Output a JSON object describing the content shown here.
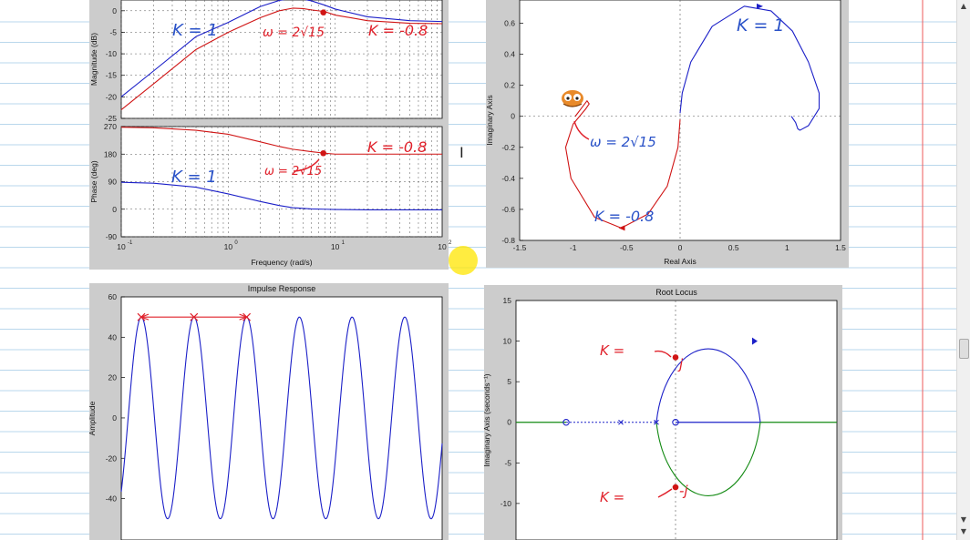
{
  "notebook": {
    "line_color": "#b9d7ec",
    "margin_color": "#ee5a5a"
  },
  "colors": {
    "blue": "#1c20c8",
    "red": "#d01515",
    "green": "#138a13",
    "ink_blue": "#2a52c8",
    "ink_red": "#e0202a"
  },
  "chart_data": [
    {
      "type": "line",
      "name": "bode-magnitude",
      "ylabel": "Magnitude (dB)",
      "xscale": "log",
      "xlim": [
        0.1,
        100
      ],
      "ylim": [
        -25,
        0
      ],
      "yticks": [
        "0",
        "-5",
        "-10",
        "-15",
        "-20",
        "-25"
      ],
      "grid": true,
      "series": [
        {
          "color": "blue",
          "x": [
            0.1,
            0.2,
            0.5,
            1,
            2,
            3,
            4,
            5,
            6,
            8,
            10,
            20,
            50,
            100
          ],
          "y": [
            -20,
            -14,
            -6,
            -2.7,
            1,
            2.4,
            2.9,
            2.7,
            2.3,
            1.3,
            0.4,
            -1.4,
            -2.3,
            -2.5
          ]
        },
        {
          "color": "red",
          "x": [
            0.1,
            0.2,
            0.5,
            1,
            2,
            3,
            4,
            5,
            6,
            8,
            10,
            20,
            50,
            100
          ],
          "y": [
            -23,
            -17,
            -9,
            -5,
            -1.6,
            0,
            0.6,
            0.5,
            0.2,
            -0.2,
            -1,
            -2.3,
            -2.9,
            -3
          ]
        }
      ],
      "annotations": [
        {
          "text": "K = 1",
          "color": "ink_blue"
        },
        {
          "text": "ω = 2√15",
          "color": "ink_red"
        },
        {
          "text": "K = -0.8",
          "color": "ink_red"
        }
      ]
    },
    {
      "type": "line",
      "name": "bode-phase",
      "ylabel": "Phase (deg)",
      "xlabel": "Frequency  (rad/s)",
      "xscale": "log",
      "xlim": [
        0.1,
        100
      ],
      "ylim": [
        -90,
        270
      ],
      "yticks": [
        "270",
        "180",
        "90",
        "0",
        "-90"
      ],
      "xticks": [
        "10^-1",
        "10^0",
        "10^1",
        "10^2"
      ],
      "grid": true,
      "series": [
        {
          "color": "blue",
          "x": [
            0.1,
            0.2,
            0.5,
            1,
            2,
            3,
            4,
            6,
            8,
            10,
            20,
            50,
            100
          ],
          "y": [
            88,
            85,
            72,
            50,
            25,
            12,
            5,
            1,
            0,
            -1,
            -2,
            -2,
            -2
          ]
        },
        {
          "color": "red",
          "x": [
            0.1,
            0.2,
            0.5,
            1,
            2,
            3,
            4,
            6,
            8,
            10,
            20,
            50,
            100
          ],
          "y": [
            268,
            266,
            258,
            245,
            220,
            205,
            196,
            188,
            183,
            180,
            180,
            180,
            180
          ]
        }
      ],
      "annotations": [
        {
          "text": "K = -0.8",
          "color": "ink_red"
        },
        {
          "text": "K = 1",
          "color": "ink_blue"
        },
        {
          "text": "ω = 2√15",
          "color": "ink_red"
        }
      ]
    },
    {
      "type": "line",
      "name": "nyquist",
      "xlabel": "Real Axis",
      "ylabel": "Imaginary Axis",
      "xlim": [
        -1.5,
        1.5
      ],
      "ylim": [
        -0.8,
        0.75
      ],
      "xticks": [
        "-1.5",
        "-1",
        "-0.5",
        "0",
        "0.5",
        "1",
        "1.5"
      ],
      "yticks": [
        "0.6",
        "0.4",
        "0.2",
        "0",
        "-0.2",
        "-0.4",
        "-0.6",
        "-0.8"
      ],
      "series": [
        {
          "color": "blue",
          "x": [
            0,
            0.02,
            0.1,
            0.3,
            0.6,
            0.85,
            1.05,
            1.2,
            1.3,
            1.3,
            1.2,
            1.12,
            1.1,
            1.08,
            1.04
          ],
          "y": [
            0.02,
            0.15,
            0.35,
            0.58,
            0.71,
            0.68,
            0.55,
            0.35,
            0.15,
            0.05,
            -0.06,
            -0.09,
            -0.08,
            -0.04,
            0
          ]
        },
        {
          "color": "red",
          "x": [
            0,
            -0.02,
            -0.12,
            -0.3,
            -0.55,
            -0.8,
            -1.02,
            -1.07,
            -1.0,
            -0.88,
            -0.85,
            -0.87,
            -0.98
          ],
          "y": [
            -0.02,
            -0.2,
            -0.45,
            -0.63,
            -0.72,
            -0.65,
            -0.4,
            -0.2,
            -0.05,
            0.05,
            0.08,
            0.1,
            0.0
          ]
        }
      ],
      "annotations": [
        {
          "text": "K = 1",
          "color": "ink_blue"
        },
        {
          "text": "ω = 2√15",
          "color": "ink_blue"
        },
        {
          "text": "K = -0.8",
          "color": "ink_blue"
        }
      ]
    },
    {
      "type": "line",
      "name": "impulse-response",
      "title": "Impulse Response",
      "ylabel": "Amplitude",
      "ylim": [
        -60,
        60
      ],
      "yticks": [
        "60",
        "40",
        "20",
        "0",
        "-20",
        "-40"
      ],
      "series": [
        {
          "color": "blue",
          "amplitude": 50,
          "peaks": 6
        }
      ]
    },
    {
      "type": "scatter",
      "name": "root-locus",
      "title": "Root Locus",
      "ylabel": "Imaginary Axis (seconds⁻¹)",
      "ylim": [
        -12,
        15
      ],
      "yticks": [
        "15",
        "10",
        "5",
        "0",
        "-5",
        "-10"
      ],
      "poles_zeros": [
        {
          "kind": "zero",
          "x": -4,
          "y": 0
        },
        {
          "kind": "zero",
          "x": 0,
          "y": 0
        },
        {
          "kind": "pole",
          "x": -2,
          "y": 0
        },
        {
          "kind": "pole",
          "x": -0.7,
          "y": 0
        }
      ],
      "annotations": [
        {
          "text": "K =",
          "color": "ink_red"
        },
        {
          "text": "j",
          "color": "ink_red"
        },
        {
          "text": "K =",
          "color": "ink_red"
        },
        {
          "text": "-j",
          "color": "ink_red"
        }
      ]
    }
  ]
}
